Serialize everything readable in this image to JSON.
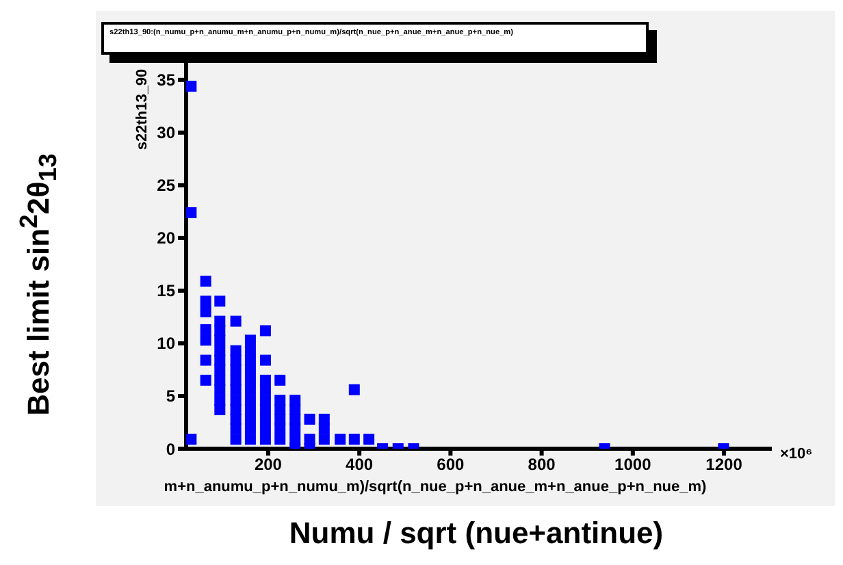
{
  "chart_data": {
    "type": "scatter",
    "title": "s22th13_90:(n_numu_p+n_anumu_m+n_anumu_p+n_numu_m)/sqrt(n_nue_p+n_anue_m+n_anue_p+n_nue_m)",
    "xlabel": "Numu / sqrt (nue+antinue)",
    "ylabel": "Best limit sin$^{2}$2θ$_{13}$",
    "annotations": [
      "s22th13_90",
      "m+n_anumu_p+n_numu_m)/sqrt(n_nue_p+n_anue_m+n_anue_p+n_nue_m)",
      "×10⁶"
    ],
    "series": [
      {
        "color": "#0000ff",
        "x": [
          31,
          31,
          31,
          63,
          63,
          94,
          63,
          63,
          63,
          63,
          63,
          94,
          94,
          94,
          94,
          94,
          94,
          94,
          94,
          94,
          94,
          129,
          129,
          129,
          129,
          129,
          129,
          129,
          129,
          129,
          129,
          129,
          161,
          161,
          161,
          161,
          161,
          161,
          161,
          161,
          161,
          161,
          161,
          194,
          194,
          194,
          194,
          194,
          194,
          194,
          194,
          194,
          226,
          226,
          226,
          226,
          226,
          226,
          259,
          259,
          259,
          259,
          259,
          259,
          291,
          291,
          291,
          323,
          323,
          323,
          358,
          389,
          389,
          421,
          451,
          485,
          519,
          938,
          1199
        ],
        "values": [
          34.4,
          22.4,
          0.9,
          15.9,
          14.0,
          14.0,
          13.0,
          11.3,
          10.3,
          8.4,
          6.5,
          12.1,
          11.2,
          10.3,
          9.3,
          8.4,
          7.5,
          6.5,
          5.6,
          4.6,
          3.7,
          12.1,
          9.3,
          8.4,
          7.5,
          6.5,
          5.6,
          4.6,
          3.7,
          2.8,
          1.9,
          0.9,
          10.3,
          9.3,
          8.4,
          7.5,
          6.5,
          5.6,
          4.6,
          3.7,
          2.8,
          1.9,
          0.9,
          11.2,
          8.4,
          6.5,
          5.6,
          4.6,
          3.7,
          2.8,
          1.9,
          0.9,
          6.5,
          4.6,
          3.7,
          2.8,
          1.9,
          0.9,
          4.6,
          3.7,
          2.8,
          1.9,
          0.9,
          0,
          2.8,
          0.9,
          0,
          2.8,
          1.9,
          0.9,
          0.9,
          5.6,
          0.9,
          0.9,
          0,
          0,
          0,
          0,
          0
        ]
      }
    ],
    "xlim": [
      20,
      1305
    ],
    "xticks": [
      200,
      400,
      600,
      800,
      1000,
      1200
    ],
    "ylim": [
      0,
      37
    ],
    "yticks": [
      0,
      5,
      10,
      15,
      20,
      25,
      30,
      35
    ],
    "marker": "square",
    "grid": false,
    "legend": false
  }
}
